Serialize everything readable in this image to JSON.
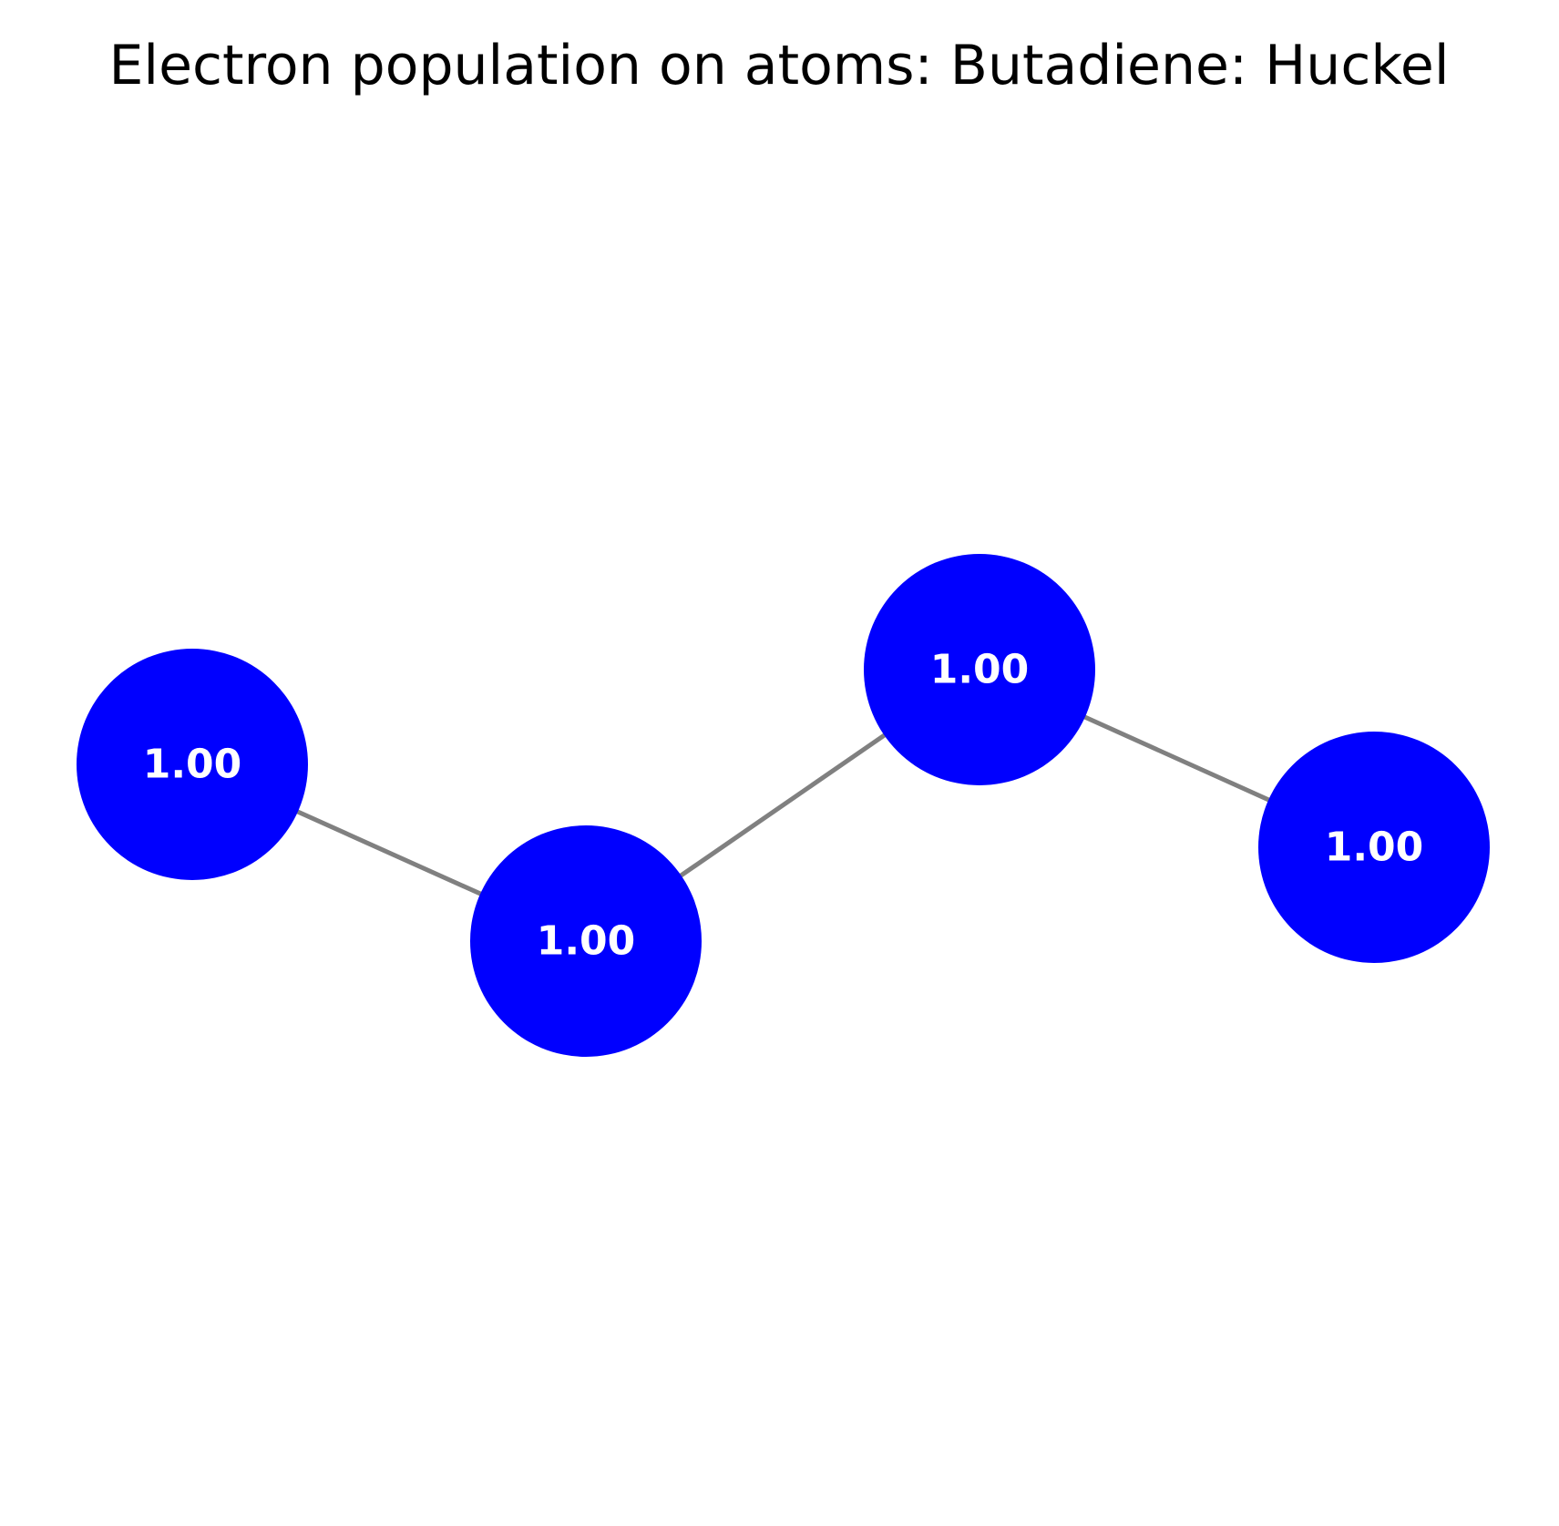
{
  "title": "Electron population on atoms: Butadiene: Huckel",
  "colors": {
    "atom_fill": "#0000ff",
    "bond_stroke": "#808080",
    "label_text": "#ffffff",
    "title_text": "#000000"
  },
  "atoms": [
    {
      "id": "C1",
      "population_label": "1.00"
    },
    {
      "id": "C2",
      "population_label": "1.00"
    },
    {
      "id": "C3",
      "population_label": "1.00"
    },
    {
      "id": "C4",
      "population_label": "1.00"
    }
  ],
  "bonds": [
    {
      "from": "C1",
      "to": "C2"
    },
    {
      "from": "C2",
      "to": "C3"
    },
    {
      "from": "C3",
      "to": "C4"
    }
  ]
}
